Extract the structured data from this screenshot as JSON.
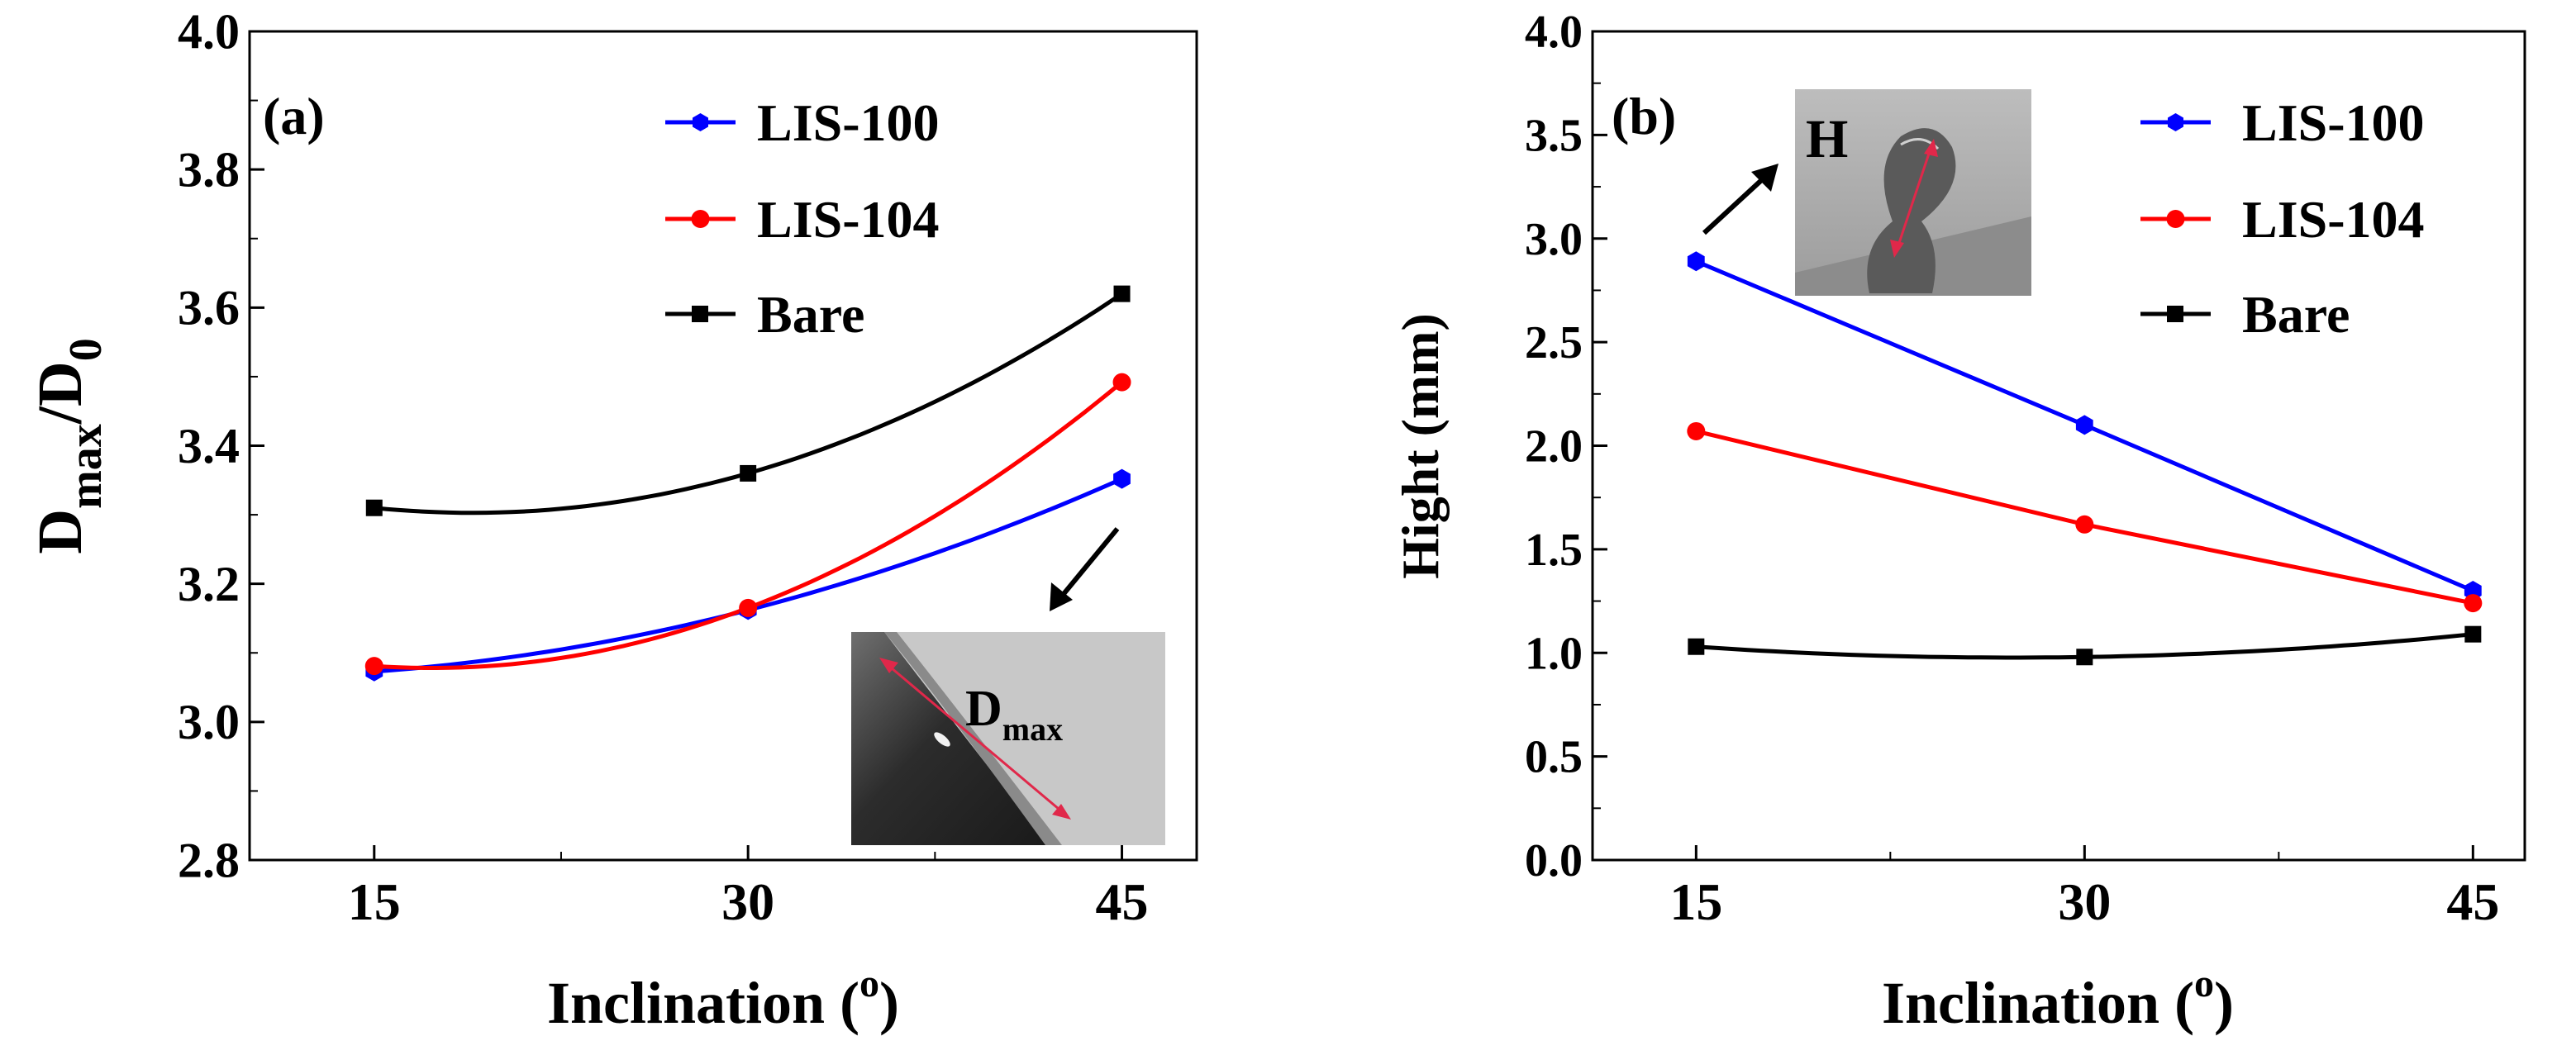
{
  "chart_data": [
    {
      "id": "a",
      "type": "line",
      "panel_label": "(a)",
      "ylabel_main": "D",
      "ylabel_sub1": "max",
      "ylabel_mid": "/D",
      "ylabel_sub2": "0",
      "xlabel_main": "Inclination (",
      "xlabel_sup": "o",
      "xlabel_end": ")",
      "x": [
        15,
        30,
        45
      ],
      "x_ticks": [
        "15",
        "30",
        "45"
      ],
      "xlim": [
        10,
        48
      ],
      "ylim": [
        2.8,
        4.0
      ],
      "y_ticks": [
        "2.8",
        "3.0",
        "3.2",
        "3.4",
        "3.6",
        "3.8",
        "4.0"
      ],
      "series": [
        {
          "name": "LIS-100",
          "color": "#0000ff",
          "marker": "hexagon",
          "values": [
            3.073,
            3.162,
            3.352
          ],
          "fit": "smooth"
        },
        {
          "name": "LIS-104",
          "color": "#ff0000",
          "marker": "circle",
          "values": [
            3.081,
            3.165,
            3.492
          ],
          "fit": "smooth"
        },
        {
          "name": "Bare",
          "color": "#000000",
          "marker": "square",
          "values": [
            3.31,
            3.36,
            3.62
          ],
          "fit": "smooth"
        }
      ],
      "legend_position": "top-right",
      "inset": {
        "label_main": "D",
        "label_sub": "max",
        "position": "bottom-right"
      }
    },
    {
      "id": "b",
      "type": "line",
      "panel_label": "(b)",
      "ylabel": "Hight (mm)",
      "xlabel_main": "Inclination (",
      "xlabel_sup": "o",
      "xlabel_end": ")",
      "x": [
        15,
        30,
        45
      ],
      "x_ticks": [
        "15",
        "30",
        "45"
      ],
      "xlim": [
        11,
        47
      ],
      "ylim": [
        0.0,
        4.0
      ],
      "y_ticks": [
        "0.0",
        "0.5",
        "1.0",
        "1.5",
        "2.0",
        "2.5",
        "3.0",
        "3.5",
        "4.0"
      ],
      "series": [
        {
          "name": "LIS-100",
          "color": "#0000ff",
          "marker": "hexagon",
          "values": [
            2.89,
            2.1,
            1.3
          ],
          "fit": "straight"
        },
        {
          "name": "LIS-104",
          "color": "#ff0000",
          "marker": "circle",
          "values": [
            2.07,
            1.62,
            1.24
          ],
          "fit": "straight"
        },
        {
          "name": "Bare",
          "color": "#000000",
          "marker": "square",
          "values": [
            1.03,
            0.98,
            1.09
          ],
          "fit": "smooth"
        }
      ],
      "legend_position": "top-right",
      "inset": {
        "label": "H",
        "position": "top-left"
      }
    }
  ]
}
